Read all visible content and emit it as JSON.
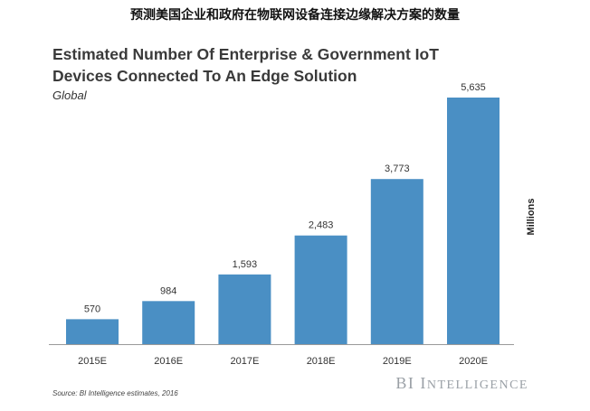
{
  "page_title": "预测美国企业和政府在物联网设备连接边缘解决方案的数量",
  "chart_data": {
    "type": "bar",
    "title_line1": "Estimated Number Of Enterprise & Government IoT",
    "title_line2": "Devices Connected To An Edge Solution",
    "subtitle": "Global",
    "categories": [
      "2015E",
      "2016E",
      "2017E",
      "2018E",
      "2019E",
      "2020E"
    ],
    "values": [
      570,
      984,
      1593,
      2483,
      3773,
      5635
    ],
    "value_labels": [
      "570",
      "984",
      "1,593",
      "2,483",
      "3,773",
      "5,635"
    ],
    "ylabel": "Millions",
    "ylim": [
      0,
      5635
    ],
    "grid": false,
    "bar_color": "#4a8fc4"
  },
  "source": "Source: BI Intelligence estimates, 2016",
  "brand": {
    "first_letter": "BI I",
    "rest": "NTELLIGENCE"
  }
}
